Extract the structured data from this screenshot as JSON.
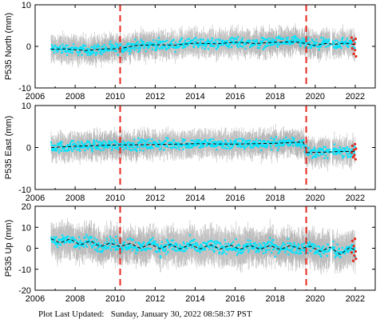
{
  "footer": {
    "label": "Plot Last Updated:",
    "timestamp": "Sunday, January 30, 2022 08:58:37 PST"
  },
  "colors": {
    "scatter_cyan": "#00e5ff",
    "error_bar_gray": "#b8b8b8",
    "event_line_red": "#e8281e",
    "recent_point_red": "#e8281e",
    "trend_dash": "#000000"
  },
  "chart_data": [
    {
      "type": "scatter",
      "ylabel": "P535 North (mm)",
      "xlim": [
        2006,
        2023
      ],
      "ylim": [
        -10,
        10
      ],
      "yticks": [
        -10,
        0,
        10
      ],
      "xticks": [
        2006,
        2008,
        2010,
        2012,
        2014,
        2016,
        2018,
        2020,
        2022
      ],
      "xtick_labels": [
        "2006",
        "2008",
        "2010",
        "2012",
        "2014",
        "2016",
        "2018",
        "2020",
        "2022"
      ],
      "show_xtick_labels": true,
      "data_start": 2006.8,
      "data_end": 2022.05,
      "data_gap": [
        2020.75,
        2020.85
      ],
      "scatter_spread": 2.0,
      "error_bar_half": 2.6,
      "event_lines_x": [
        2010.25,
        2019.55
      ],
      "trend": {
        "x": [
          2006.8,
          2007.5,
          2008.5,
          2009.5,
          2010.2,
          2011,
          2012,
          2013,
          2014,
          2015,
          2016,
          2017,
          2018,
          2019,
          2019.5,
          2020,
          2020.5,
          2021,
          2021.5,
          2022
        ],
        "y": [
          -0.7,
          -0.6,
          -1.0,
          -0.6,
          -0.6,
          0.2,
          0.4,
          0.3,
          0.8,
          0.6,
          1.0,
          0.7,
          1.0,
          1.1,
          0.7,
          0.2,
          0.7,
          0.5,
          0.8,
          0.4
        ]
      },
      "recent_points": {
        "x": [
          21.82,
          21.86,
          21.9,
          21.93,
          21.96,
          21.99,
          22.02,
          22.04
        ],
        "y": [
          2.1,
          -0.5,
          1.4,
          -1.8,
          0.6,
          -0.9,
          1.8,
          -2.4
        ]
      }
    },
    {
      "type": "scatter",
      "ylabel": "P535 East (mm)",
      "xlim": [
        2006,
        2023
      ],
      "ylim": [
        -10,
        10
      ],
      "yticks": [
        -10,
        0,
        10
      ],
      "xticks": [
        2006,
        2008,
        2010,
        2012,
        2014,
        2016,
        2018,
        2020,
        2022
      ],
      "xtick_labels": [
        "2006",
        "2008",
        "2010",
        "2012",
        "2014",
        "2016",
        "2018",
        "2020",
        "2022"
      ],
      "show_xtick_labels": true,
      "data_start": 2006.8,
      "data_end": 2022.05,
      "data_gap": [
        2020.75,
        2020.85
      ],
      "scatter_spread": 2.0,
      "error_bar_half": 2.6,
      "event_lines_x": [
        2010.25,
        2019.55
      ],
      "trend": {
        "x": [
          2006.8,
          2008,
          2010,
          2012,
          2014,
          2016,
          2018,
          2019.4,
          2019.6,
          2020.5,
          2021,
          2022
        ],
        "y": [
          0.0,
          0.3,
          0.6,
          0.7,
          0.9,
          0.8,
          1.0,
          1.3,
          -1.2,
          -1.1,
          -1.0,
          -0.9
        ]
      },
      "recent_points": {
        "x": [
          21.82,
          21.86,
          21.9,
          21.93,
          21.96,
          21.99,
          22.02,
          22.04
        ],
        "y": [
          -1.2,
          0.4,
          -2.3,
          -0.6,
          -1.8,
          0.8,
          -2.8,
          -0.3
        ]
      }
    },
    {
      "type": "scatter",
      "ylabel": "P535 Up (mm)",
      "xlim": [
        2006,
        2023
      ],
      "ylim": [
        -20,
        20
      ],
      "yticks": [
        -20,
        -10,
        0,
        10,
        20
      ],
      "xticks": [
        2006,
        2008,
        2010,
        2012,
        2014,
        2016,
        2018,
        2020,
        2022
      ],
      "xtick_labels": [
        "2006",
        "2008",
        "2010",
        "2012",
        "2014",
        "2016",
        "2018",
        "2020",
        "2022"
      ],
      "show_xtick_labels": true,
      "data_start": 2006.8,
      "data_end": 2022.05,
      "data_gap": [
        2020.75,
        2020.85
      ],
      "scatter_spread": 5.0,
      "error_bar_half": 7.0,
      "event_lines_x": [
        2010.25,
        2019.55
      ],
      "trend": {
        "x": [
          2006.8,
          2007.25,
          2007.75,
          2008.25,
          2008.75,
          2009.25,
          2009.75,
          2010.25,
          2010.75,
          2011.25,
          2011.75,
          2012.25,
          2012.75,
          2013.25,
          2013.75,
          2014.25,
          2014.75,
          2015.25,
          2015.75,
          2016.25,
          2016.75,
          2017.25,
          2017.75,
          2018.25,
          2018.75,
          2019.25,
          2019.75,
          2020.25,
          2020.75,
          2021.25,
          2021.75,
          2022
        ],
        "y": [
          4.5,
          2.5,
          4.5,
          1.5,
          3.5,
          0.8,
          2.5,
          0.8,
          2.3,
          0.0,
          2.0,
          -0.2,
          1.8,
          -0.3,
          1.7,
          -0.3,
          1.7,
          -0.4,
          1.5,
          -0.5,
          1.4,
          -0.5,
          1.3,
          -0.6,
          1.3,
          -0.3,
          1.0,
          -1.5,
          0.5,
          -3.0,
          0.5,
          -1.0
        ]
      },
      "recent_points": {
        "x": [
          21.82,
          21.86,
          21.9,
          21.93,
          21.96,
          21.99,
          22.02,
          22.04
        ],
        "y": [
          -2.0,
          3.5,
          -6.0,
          1.0,
          -3.5,
          4.5,
          -1.5,
          -5.0
        ]
      }
    }
  ]
}
